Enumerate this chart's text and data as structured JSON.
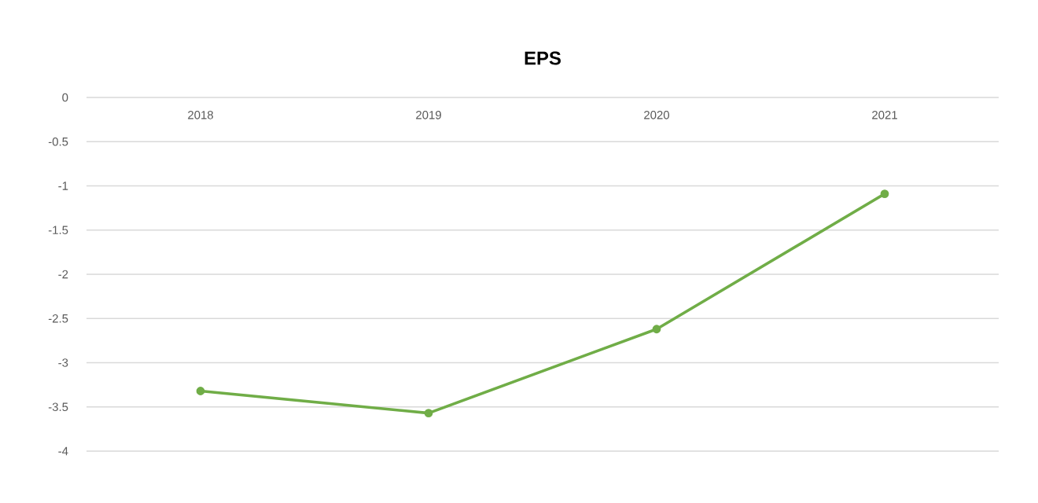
{
  "chart_data": {
    "type": "line",
    "title": "EPS",
    "categories": [
      "2018",
      "2019",
      "2020",
      "2021"
    ],
    "series": [
      {
        "color": "#70ad47",
        "values": [
          -3.32,
          -3.57,
          -2.62,
          -1.09
        ]
      }
    ],
    "ylim": [
      -4,
      0
    ],
    "yticks": [
      0,
      -0.5,
      -1,
      -1.5,
      -2,
      -2.5,
      -3,
      -3.5,
      -4
    ],
    "grid": "y",
    "marker": "circle"
  }
}
